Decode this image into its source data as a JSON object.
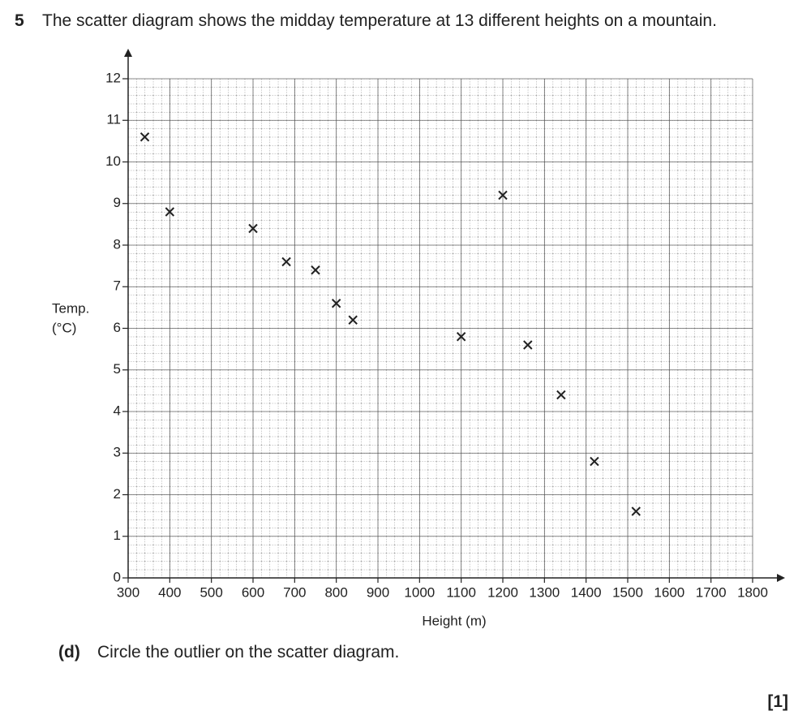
{
  "question": {
    "number": "5",
    "text": "The scatter diagram shows the midday temperature at 13 different heights on a mountain."
  },
  "chart_data": {
    "type": "scatter",
    "xlabel": "Height (m)",
    "ylabel": [
      "Temp.",
      "(°C)"
    ],
    "x": [
      340,
      400,
      600,
      680,
      750,
      800,
      840,
      1100,
      1200,
      1260,
      1340,
      1420,
      1520
    ],
    "values": [
      10.6,
      8.8,
      8.4,
      7.6,
      7.4,
      6.6,
      6.2,
      5.8,
      9.2,
      5.6,
      4.4,
      2.8,
      1.6
    ],
    "color": "#222",
    "marker": "x",
    "xlim": [
      300,
      1800
    ],
    "ylim": [
      0,
      12
    ],
    "xticks": [
      300,
      400,
      500,
      600,
      700,
      800,
      900,
      1000,
      1100,
      1200,
      1300,
      1400,
      1500,
      1600,
      1700,
      1800
    ],
    "yticks": [
      0,
      1,
      2,
      3,
      4,
      5,
      6,
      7,
      8,
      9,
      10,
      11,
      12
    ],
    "grid": true
  },
  "part": {
    "label": "(d)",
    "text": "Circle the outlier on the scatter diagram.",
    "marks": "[1]"
  }
}
